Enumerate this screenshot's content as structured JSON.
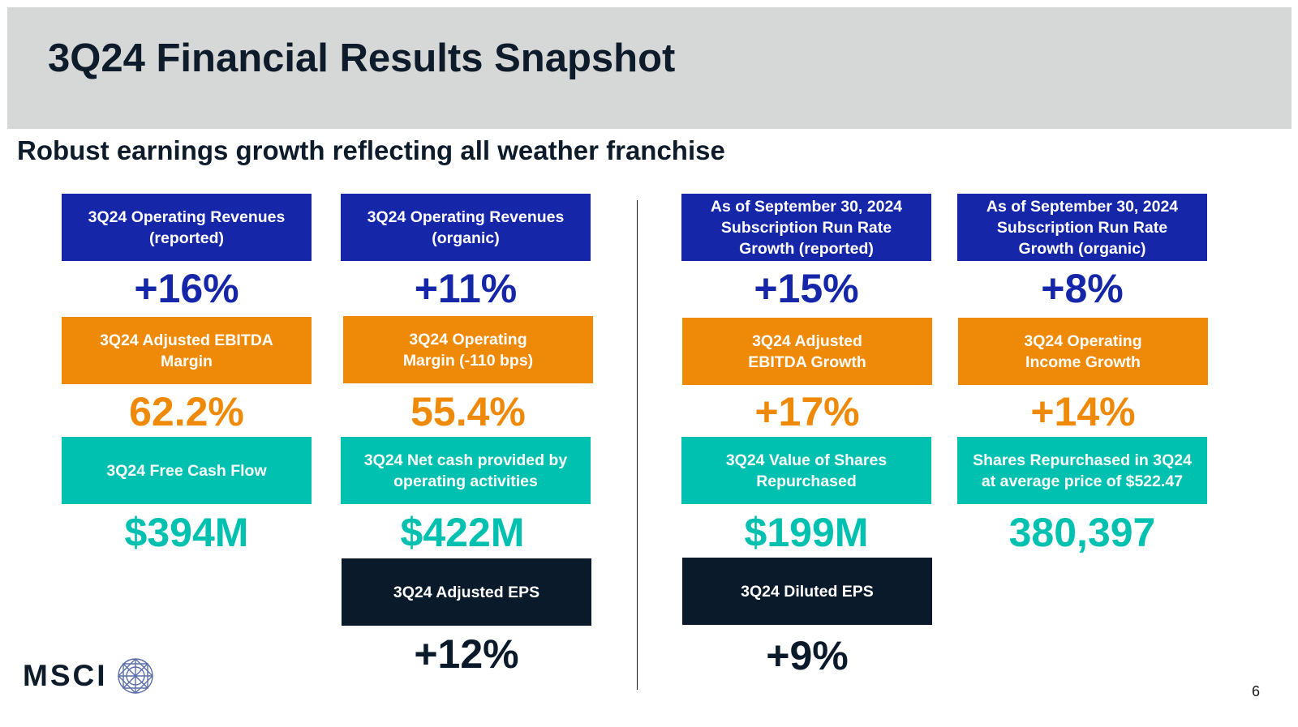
{
  "slide": {
    "title": "3Q24 Financial Results Snapshot",
    "subtitle": "Robust earnings growth reflecting all weather franchise",
    "page_number": "6",
    "logo_text": "MSCI"
  },
  "colors": {
    "blue": "#1526a8",
    "orange": "#ef8a08",
    "teal": "#00c1b0",
    "dark": "#0a1a2a",
    "header_gray": "#d6d8d7"
  },
  "metrics": {
    "op_rev_reported": {
      "label": "3Q24 Operating Revenues\n(reported)",
      "value": "+16%"
    },
    "op_rev_organic": {
      "label": "3Q24 Operating Revenues\n(organic)",
      "value": "+11%"
    },
    "srr_reported": {
      "label": "As of September 30, 2024\nSubscription Run Rate\nGrowth (reported)",
      "value": "+15%"
    },
    "srr_organic": {
      "label": "As of September 30, 2024\nSubscription Run Rate\nGrowth (organic)",
      "value": "+8%"
    },
    "adj_ebitda_margin": {
      "label": "3Q24 Adjusted EBITDA\nMargin",
      "value": "62.2%"
    },
    "op_margin": {
      "label": "3Q24 Operating\nMargin (-110 bps)",
      "value": "55.4%"
    },
    "adj_ebitda_growth": {
      "label": "3Q24 Adjusted\nEBITDA Growth",
      "value": "+17%"
    },
    "op_income_growth": {
      "label": "3Q24 Operating\nIncome Growth",
      "value": "+14%"
    },
    "free_cash_flow": {
      "label": "3Q24 Free Cash Flow",
      "value": "$394M"
    },
    "net_cash_ops": {
      "label": "3Q24 Net cash provided by\noperating activities",
      "value": "$422M"
    },
    "shares_value": {
      "label": "3Q24 Value of Shares\nRepurchased",
      "value": "$199M"
    },
    "shares_count": {
      "label": "Shares Repurchased in 3Q24\nat average price of $522.47",
      "value": "380,397"
    },
    "adj_eps": {
      "label": "3Q24 Adjusted EPS",
      "value": "+12%"
    },
    "diluted_eps": {
      "label": "3Q24 Diluted EPS",
      "value": "+9%"
    }
  }
}
